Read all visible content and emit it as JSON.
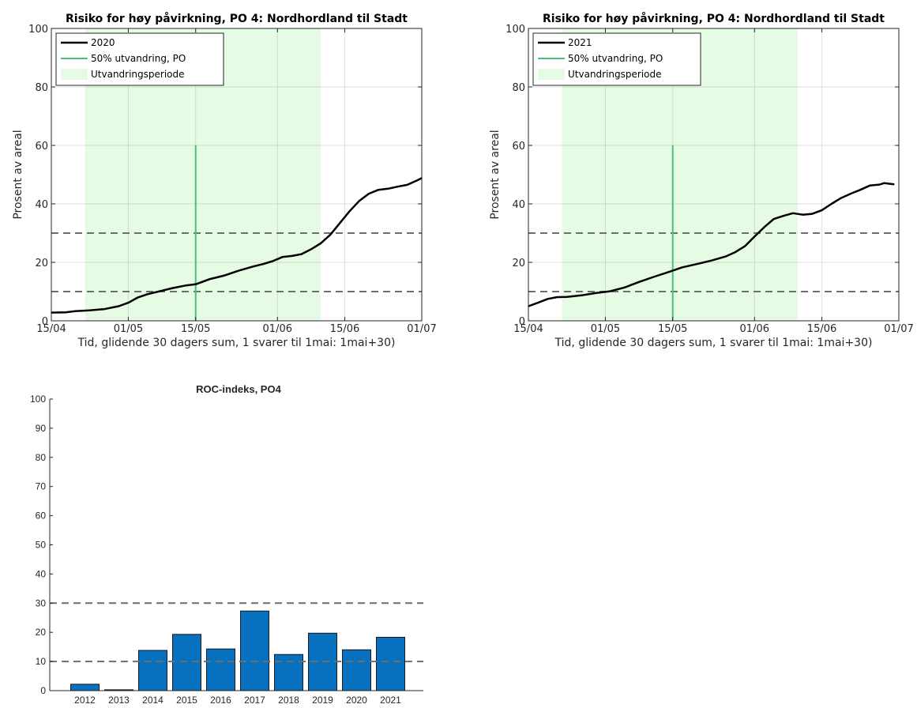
{
  "chart_data": [
    {
      "type": "line",
      "title": "Risiko for høy påvirkning, PO 4: Nordhordland til Stadt",
      "xlabel": "Tid, glidende 30 dagers sum, 1 svarer til 1mai: 1mai+30)",
      "ylabel": "Prosent av areal",
      "xticks": [
        "15/04",
        "01/05",
        "15/05",
        "01/06",
        "15/06",
        "01/07"
      ],
      "xlim": [
        "15/04",
        "01/07"
      ],
      "ylim": [
        0,
        100
      ],
      "yticks": [
        0,
        20,
        40,
        60,
        80,
        100
      ],
      "grid": true,
      "legend_position": "top-left",
      "series": [
        {
          "name": "2020",
          "color": "#000000",
          "x": [
            "15/04",
            "18/04",
            "20/04",
            "23/04",
            "26/04",
            "29/04",
            "01/05",
            "03/05",
            "05/05",
            "08/05",
            "10/05",
            "13/05",
            "15/05",
            "18/05",
            "21/05",
            "24/05",
            "27/05",
            "29/05",
            "31/05",
            "02/06",
            "04/06",
            "06/06",
            "08/06",
            "10/06",
            "12/06",
            "14/06",
            "16/06",
            "18/06",
            "20/06",
            "22/06",
            "24/06",
            "26/06",
            "28/06",
            "30/06",
            "01/07"
          ],
          "y": [
            2.8,
            2.9,
            3.3,
            3.6,
            4.0,
            5.0,
            6.2,
            8.0,
            9.1,
            10.3,
            11.1,
            12.1,
            12.5,
            14.3,
            15.5,
            17.2,
            18.6,
            19.4,
            20.4,
            21.8,
            22.2,
            22.8,
            24.5,
            26.5,
            29.5,
            33.5,
            37.5,
            41.0,
            43.5,
            44.8,
            45.2,
            45.9,
            46.5,
            48.0,
            48.8
          ]
        },
        {
          "name": "50% utvandring, PO",
          "color": "#46c278",
          "x": [
            "15/05",
            "15/05"
          ],
          "y": [
            0,
            60
          ]
        },
        {
          "name": "Utvandringsperiode",
          "color": "#e6fbe3",
          "x_range": [
            "22/04",
            "10/06"
          ]
        }
      ],
      "reference_lines": [
        10,
        30
      ]
    },
    {
      "type": "line",
      "title": "Risiko for høy påvirkning, PO 4: Nordhordland til Stadt",
      "xlabel": "Tid, glidende 30 dagers sum, 1 svarer til 1mai: 1mai+30)",
      "ylabel": "Prosent av areal",
      "xticks": [
        "15/04",
        "01/05",
        "15/05",
        "01/06",
        "15/06",
        "01/07"
      ],
      "xlim": [
        "15/04",
        "01/07"
      ],
      "ylim": [
        0,
        100
      ],
      "yticks": [
        0,
        20,
        40,
        60,
        80,
        100
      ],
      "grid": true,
      "legend_position": "top-left",
      "series": [
        {
          "name": "2021",
          "color": "#000000",
          "x": [
            "15/04",
            "17/04",
            "19/04",
            "21/04",
            "23/04",
            "26/04",
            "29/04",
            "02/05",
            "05/05",
            "08/05",
            "11/05",
            "14/05",
            "17/05",
            "20/05",
            "23/05",
            "26/05",
            "28/05",
            "30/05",
            "01/06",
            "03/06",
            "05/06",
            "07/06",
            "09/06",
            "11/06",
            "13/06",
            "15/06",
            "17/06",
            "19/06",
            "21/06",
            "23/06",
            "25/06",
            "27/06",
            "28/06",
            "29/06",
            "30/06"
          ],
          "y": [
            5.0,
            6.2,
            7.5,
            8.1,
            8.2,
            8.7,
            9.5,
            10.1,
            11.4,
            13.3,
            15.0,
            16.6,
            18.3,
            19.4,
            20.6,
            22.0,
            23.5,
            25.5,
            28.8,
            32.0,
            34.8,
            35.9,
            36.8,
            36.3,
            36.6,
            37.8,
            40.0,
            42.0,
            43.5,
            44.8,
            46.3,
            46.6,
            47.1,
            46.9,
            46.7
          ]
        },
        {
          "name": "50% utvandring, PO",
          "color": "#46c278",
          "x": [
            "15/05",
            "15/05"
          ],
          "y": [
            0,
            60
          ]
        },
        {
          "name": "Utvandringsperiode",
          "color": "#e6fbe3",
          "x_range": [
            "22/04",
            "10/06"
          ]
        }
      ],
      "reference_lines": [
        10,
        30
      ]
    },
    {
      "type": "bar",
      "title": "ROC-indeks, PO4",
      "categories": [
        "2012",
        "2013",
        "2014",
        "2015",
        "2016",
        "2017",
        "2018",
        "2019",
        "2020",
        "2021"
      ],
      "values": [
        2.2,
        0.3,
        13.8,
        19.3,
        14.3,
        27.3,
        12.4,
        19.7,
        14.0,
        18.3
      ],
      "ylim": [
        0,
        100
      ],
      "yticks": [
        0,
        10,
        20,
        30,
        40,
        50,
        60,
        70,
        80,
        90,
        100
      ],
      "bar_color": "#0771bf",
      "reference_lines": [
        10,
        30
      ]
    }
  ]
}
